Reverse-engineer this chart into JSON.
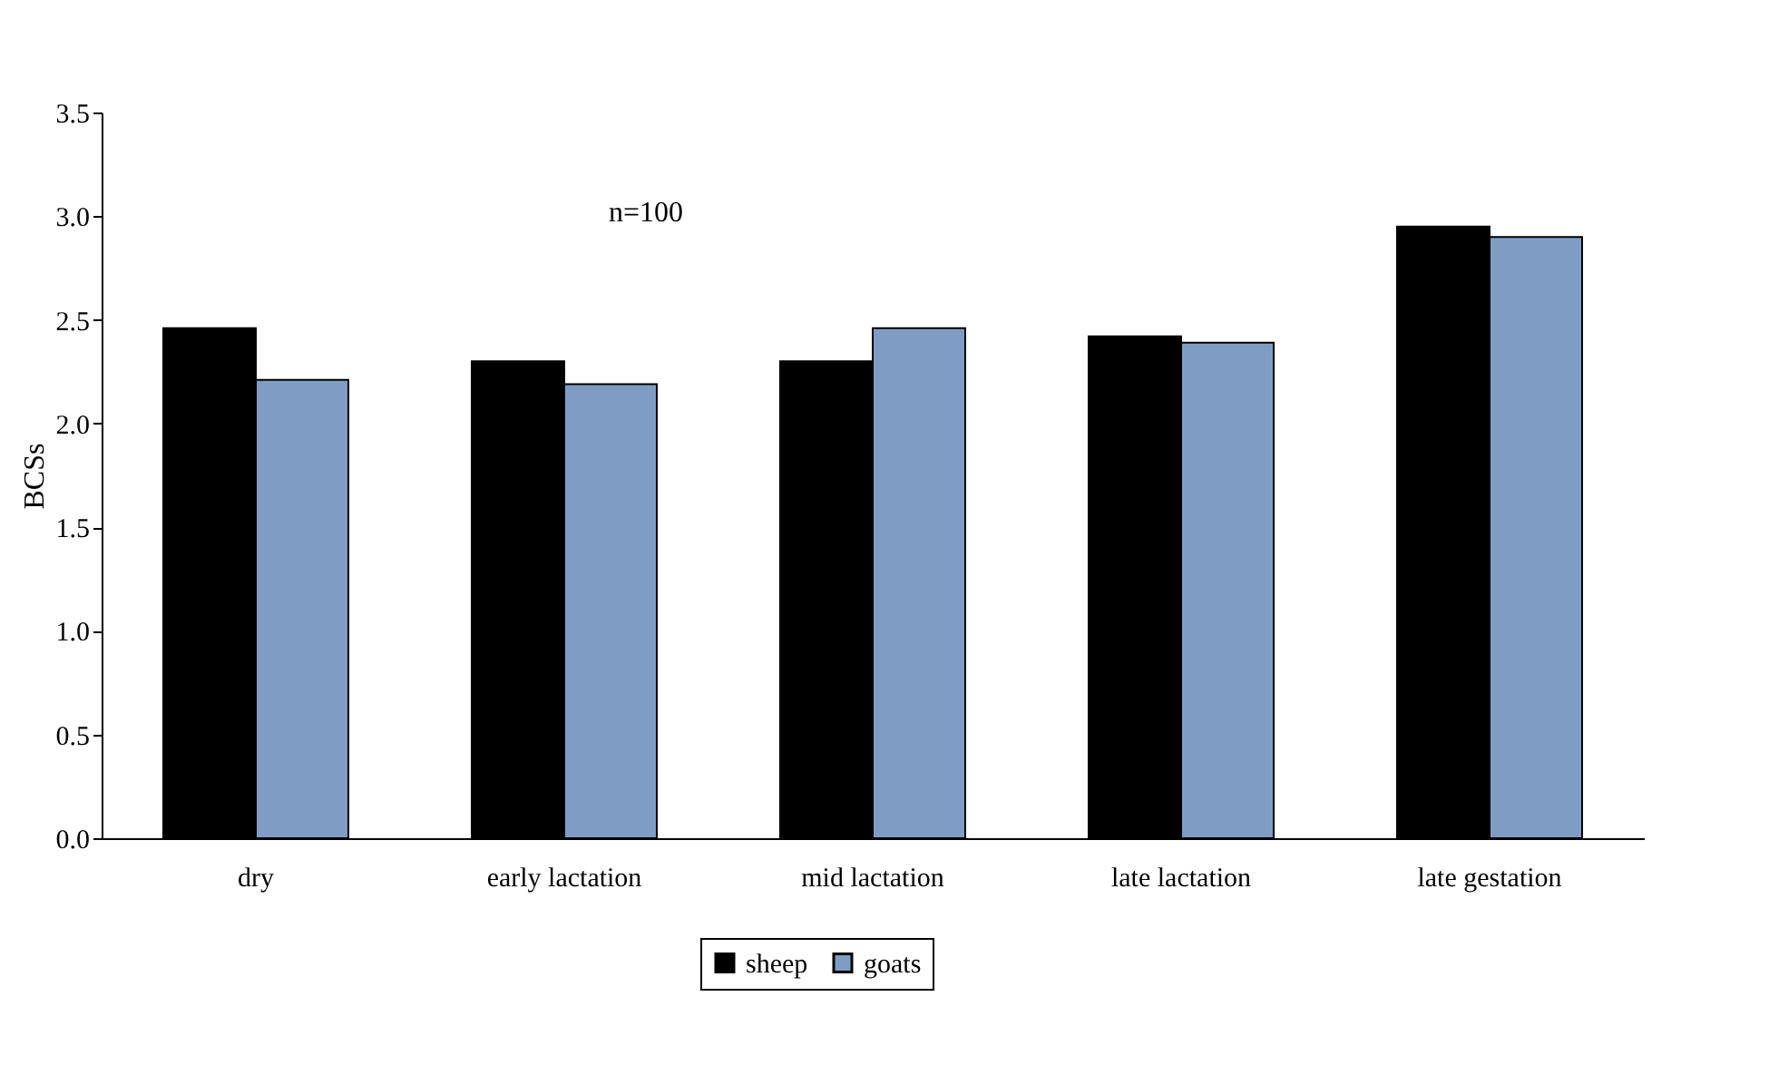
{
  "chart_data": {
    "type": "bar",
    "ylabel": "BCSs",
    "categories": [
      "dry",
      "early lactation",
      "mid lactation",
      "late lactation",
      "late gestation"
    ],
    "series": [
      {
        "name": "sheep",
        "color": "#000000",
        "values": [
          2.46,
          2.3,
          2.3,
          2.42,
          2.95
        ]
      },
      {
        "name": "goats",
        "color": "#7f9cc4",
        "values": [
          2.21,
          2.19,
          2.46,
          2.39,
          2.9
        ]
      }
    ],
    "ylim": [
      0,
      3.5
    ],
    "yticks": [
      {
        "value": 0,
        "label": "0.0"
      },
      0.5,
      {
        "value": 1,
        "label": "1.0"
      },
      1.5,
      {
        "value": 2,
        "label": "2.0"
      },
      2.5,
      {
        "value": 3,
        "label": "3.0"
      },
      3.5
    ],
    "annotations": [
      "n=100"
    ],
    "grid": false,
    "legend": "bottom"
  }
}
